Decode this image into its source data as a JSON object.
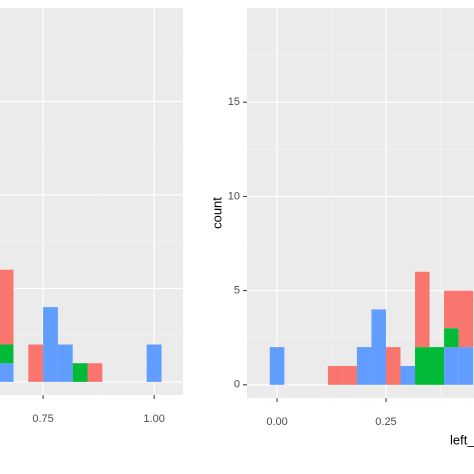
{
  "chart_data": [
    {
      "type": "histogram",
      "bins": [
        0.65,
        0.6833,
        0.7167,
        0.75,
        0.7833,
        0.8167,
        0.85,
        0.8833,
        0.9167,
        0.95,
        0.9833,
        1.0167
      ],
      "series": [
        {
          "color": "#F8766D",
          "values": [
            4,
            0,
            2,
            0,
            0,
            0,
            1,
            0,
            0,
            0,
            0
          ]
        },
        {
          "color": "#00BA38",
          "values": [
            1,
            0,
            0,
            0,
            0,
            1,
            0,
            0,
            0,
            0,
            0
          ]
        },
        {
          "color": "#619CFF",
          "values": [
            1,
            0,
            0,
            4,
            2,
            0,
            0,
            0,
            0,
            0,
            2
          ]
        }
      ],
      "xlim": [
        0.653,
        1.065
      ],
      "ylim": [
        -0.7,
        20
      ],
      "xticks": [
        {
          "value": 0.75,
          "label": "0.75"
        },
        {
          "value": 1,
          "label": "1.00"
        }
      ],
      "xminor": [
        0.875
      ],
      "yticks": [
        0,
        5,
        10,
        15
      ],
      "yminor": [
        2.5,
        7.5,
        12.5,
        17.5
      ],
      "show_ytick_labels": false,
      "grid": true
    },
    {
      "type": "histogram",
      "ylabel": "count",
      "xlabel": "left_",
      "bins": [
        -0.0167,
        0.0167,
        0.05,
        0.0833,
        0.1167,
        0.15,
        0.1833,
        0.2167,
        0.25,
        0.2833,
        0.3167,
        0.35,
        0.3833,
        0.4167,
        0.45
      ],
      "series": [
        {
          "color": "#F8766D",
          "values": [
            0,
            0,
            0,
            0,
            1,
            1,
            0,
            0,
            2,
            0,
            4,
            0,
            2,
            3
          ]
        },
        {
          "color": "#00BA38",
          "values": [
            0,
            0,
            0,
            0,
            0,
            0,
            0,
            0,
            0,
            0,
            2,
            2,
            1,
            0
          ]
        },
        {
          "color": "#619CFF",
          "values": [
            2,
            0,
            0,
            0,
            0,
            0,
            2,
            4,
            0,
            1,
            0,
            0,
            2,
            2
          ]
        }
      ],
      "xlim": [
        -0.069,
        0.452
      ],
      "ylim": [
        -0.7,
        20
      ],
      "xticks": [
        {
          "value": 0,
          "label": "0.00"
        },
        {
          "value": 0.25,
          "label": "0.25"
        }
      ],
      "xminor": [
        0.125,
        0.375
      ],
      "yticks": [
        0,
        5,
        10,
        15
      ],
      "yminor": [
        2.5,
        7.5,
        12.5,
        17.5
      ],
      "show_ytick_labels": true,
      "grid": true
    }
  ]
}
